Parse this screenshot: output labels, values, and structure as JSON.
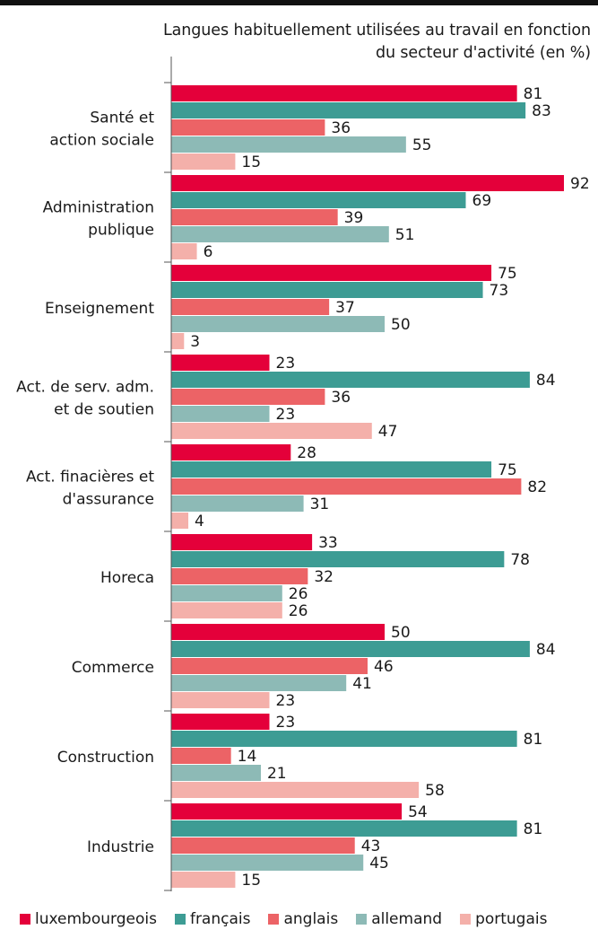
{
  "chart_data": {
    "type": "bar",
    "orientation": "horizontal",
    "title_lines": [
      "Langues habituellement utilisées au travail en fonction",
      "du secteur d'activité (en %)"
    ],
    "categories": [
      [
        "Santé et",
        "action sociale"
      ],
      [
        "Administration",
        "publique"
      ],
      [
        "Enseignement"
      ],
      [
        "Act. de serv. adm.",
        "et de soutien"
      ],
      [
        "Act. finacières et",
        "d'assurance"
      ],
      [
        "Horeca"
      ],
      [
        "Commerce"
      ],
      [
        "Construction"
      ],
      [
        "Industrie"
      ]
    ],
    "series": [
      {
        "name": "luxembourgeois",
        "color": "#e4003a",
        "values": [
          81,
          92,
          75,
          23,
          28,
          33,
          50,
          23,
          54
        ]
      },
      {
        "name": "français",
        "color": "#3d9c94",
        "values": [
          83,
          69,
          73,
          84,
          75,
          78,
          84,
          81,
          81
        ]
      },
      {
        "name": "anglais",
        "color": "#ec6366",
        "values": [
          36,
          39,
          37,
          36,
          82,
          32,
          46,
          14,
          43
        ]
      },
      {
        "name": "allemand",
        "color": "#8dbab6",
        "values": [
          55,
          51,
          50,
          23,
          31,
          26,
          41,
          21,
          45
        ]
      },
      {
        "name": "portugais",
        "color": "#f4b0aa",
        "values": [
          15,
          6,
          3,
          47,
          4,
          26,
          23,
          58,
          15
        ]
      }
    ],
    "xlim": [
      0,
      92
    ],
    "legend_position": "bottom",
    "grid": false
  }
}
